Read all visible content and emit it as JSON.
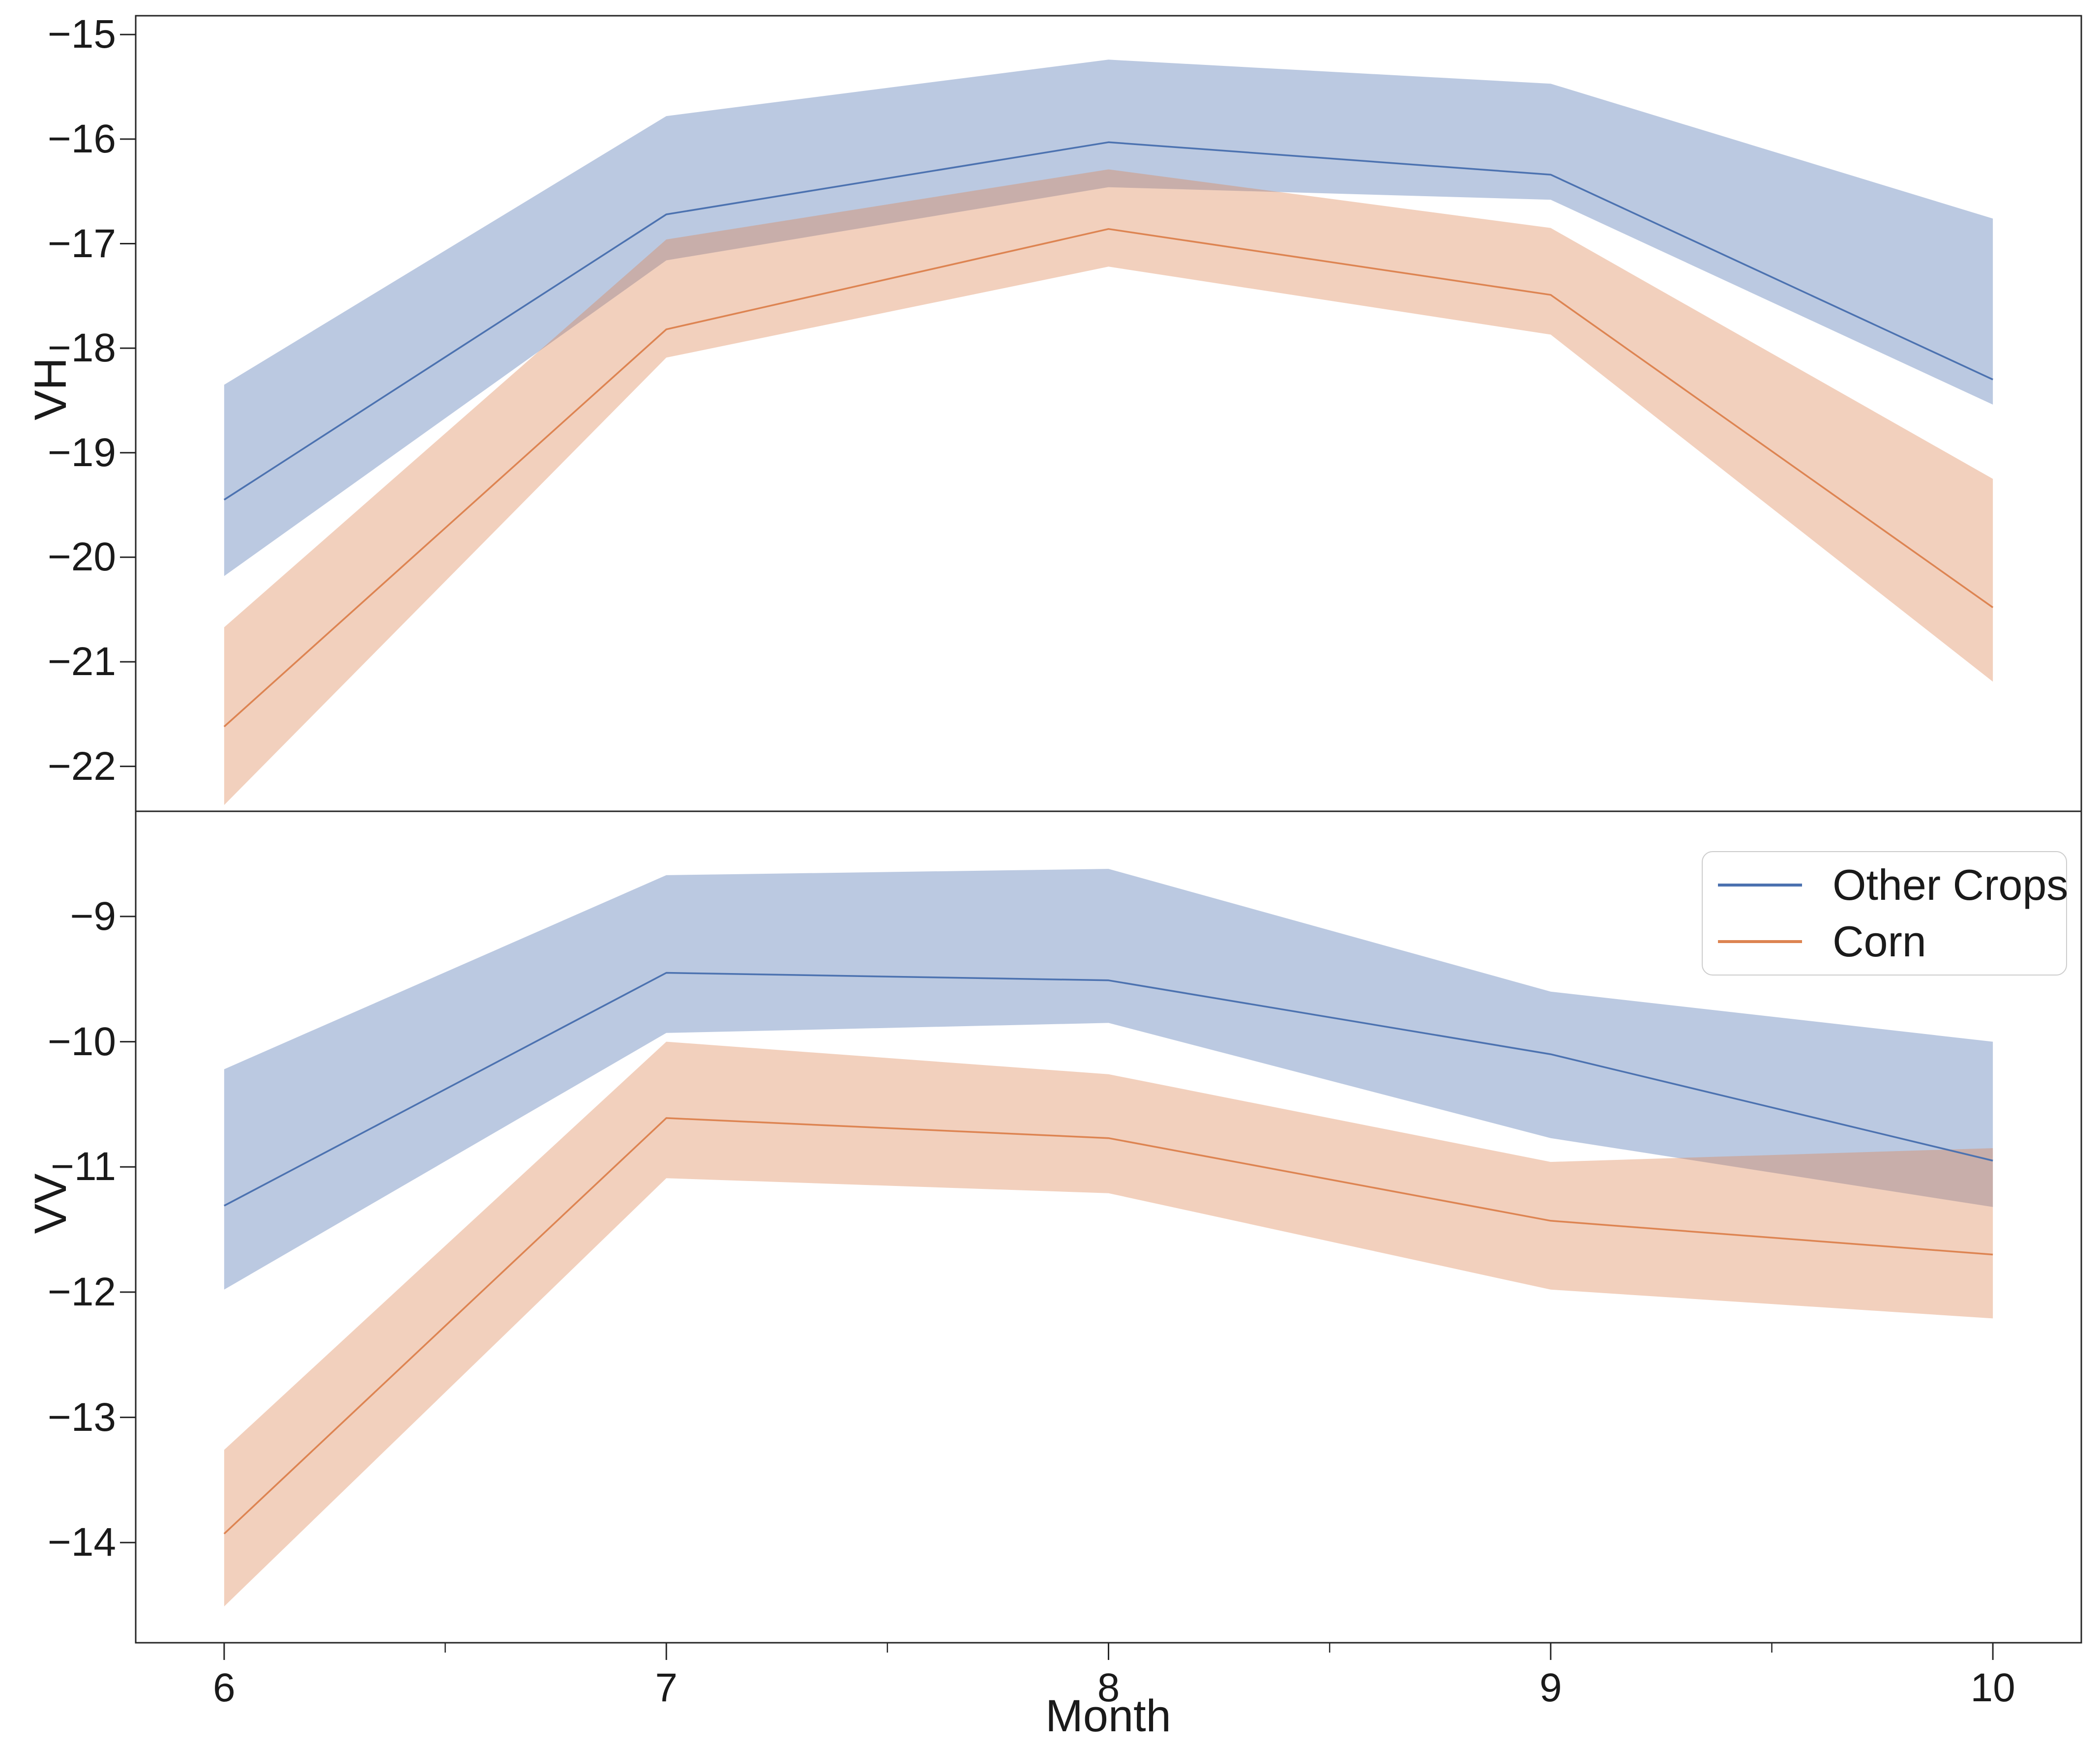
{
  "x_axis": {
    "label": "Month",
    "tick_labels": [
      "6",
      "7",
      "8",
      "9",
      "10"
    ],
    "tick_values": [
      6,
      7,
      8,
      9,
      10
    ],
    "minor_tick_values": [
      6.5,
      7.5,
      8.5,
      9.5
    ]
  },
  "panels": [
    {
      "ylabel": "VH",
      "ytick_labels": [
        "−15",
        "−16",
        "−17",
        "−18",
        "−19",
        "−20",
        "−21",
        "−22"
      ],
      "ytick_values": [
        -15,
        -16,
        -17,
        -18,
        -19,
        -20,
        -21,
        -22
      ]
    },
    {
      "ylabel": "VV",
      "ytick_labels": [
        "−9",
        "−10",
        "−11",
        "−12",
        "−13",
        "−14"
      ],
      "ytick_values": [
        -9,
        -10,
        -11,
        -12,
        -13,
        -14
      ]
    }
  ],
  "legend": {
    "entries": [
      {
        "label": "Other Crops",
        "color": "#4C72B0"
      },
      {
        "label": "Corn",
        "color": "#DD8452"
      }
    ]
  },
  "colors": {
    "other_crops_line": "#4C72B0",
    "corn_line": "#DD8452",
    "band_alpha": 0.38,
    "spine": "#262626",
    "text": "#1a1a1a"
  },
  "chart_data": [
    {
      "type": "line",
      "title": "",
      "xlabel": "Month",
      "ylabel": "VH",
      "x": [
        6,
        7,
        8,
        9,
        10
      ],
      "xlim": [
        5.8,
        10.2
      ],
      "ylim": [
        -22.43,
        -14.82
      ],
      "grid": false,
      "legend_position": "none",
      "series": [
        {
          "name": "Other Crops",
          "color": "#4C72B0",
          "values": [
            -19.45,
            -16.72,
            -16.03,
            -16.34,
            -18.3
          ],
          "upper": [
            -18.35,
            -15.78,
            -15.24,
            -15.47,
            -16.76
          ],
          "lower": [
            -20.18,
            -17.16,
            -16.46,
            -16.58,
            -18.54
          ]
        },
        {
          "name": "Corn",
          "color": "#DD8452",
          "values": [
            -21.62,
            -17.82,
            -16.86,
            -17.49,
            -20.48
          ],
          "upper": [
            -20.67,
            -16.96,
            -16.29,
            -16.85,
            -19.25
          ],
          "lower": [
            -22.37,
            -18.09,
            -17.22,
            -17.87,
            -21.19
          ]
        }
      ]
    },
    {
      "type": "line",
      "title": "",
      "xlabel": "Month",
      "ylabel": "VV",
      "x": [
        6,
        7,
        8,
        9,
        10
      ],
      "xlim": [
        5.8,
        10.2
      ],
      "ylim": [
        -14.8,
        -8.16
      ],
      "grid": false,
      "legend_position": "upper right",
      "series": [
        {
          "name": "Other Crops",
          "color": "#4C72B0",
          "values": [
            -11.31,
            -9.45,
            -9.51,
            -10.1,
            -10.95
          ],
          "upper": [
            -10.22,
            -8.67,
            -8.62,
            -9.6,
            -10.0
          ],
          "lower": [
            -11.98,
            -9.93,
            -9.85,
            -10.77,
            -11.32
          ]
        },
        {
          "name": "Corn",
          "color": "#DD8452",
          "values": [
            -13.93,
            -10.61,
            -10.77,
            -11.43,
            -11.7
          ],
          "upper": [
            -13.26,
            -10.0,
            -10.26,
            -10.96,
            -10.85
          ],
          "lower": [
            -14.51,
            -11.09,
            -11.21,
            -11.98,
            -12.21
          ]
        }
      ]
    }
  ]
}
